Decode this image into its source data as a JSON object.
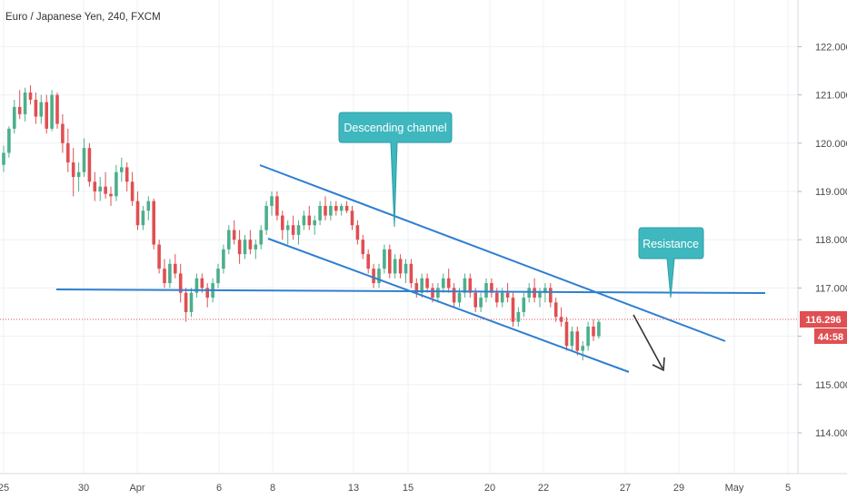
{
  "header": {
    "title": "Euro / Japanese Yen, 240, FXCM"
  },
  "colors": {
    "up": "#4caf8c",
    "down": "#e04f52",
    "trendline": "#2e7fd1",
    "callout": "#3fb7be",
    "grid": "#eef0f3",
    "price_line": "#e04f52",
    "price_badge": "#e04f52"
  },
  "price_badge": {
    "price": "116.296",
    "countdown": "44:58"
  },
  "chart_data": {
    "type": "candlestick",
    "title": "Euro / Japanese Yen, 240, FXCM",
    "x_tick_labels": [
      "25",
      "30",
      "Apr",
      "6",
      "8",
      "13",
      "15",
      "20",
      "22",
      "27",
      "29",
      "May",
      "5"
    ],
    "y_tick_labels": [
      "114.000",
      "115.000",
      "116.000",
      "117.000",
      "118.000",
      "119.000",
      "120.000",
      "121.000",
      "122.000"
    ],
    "ylim": [
      113.0,
      123.0
    ],
    "grid": true,
    "current_price": 116.296,
    "ohlc": [
      [
        119.55,
        119.95,
        119.4,
        119.8
      ],
      [
        119.8,
        120.35,
        119.7,
        120.3
      ],
      [
        120.3,
        120.9,
        120.2,
        120.75
      ],
      [
        120.75,
        121.1,
        120.5,
        120.6
      ],
      [
        120.6,
        121.15,
        120.45,
        121.05
      ],
      [
        121.05,
        121.2,
        120.8,
        120.9
      ],
      [
        120.9,
        121.05,
        120.4,
        120.55
      ],
      [
        120.55,
        121.0,
        120.4,
        120.85
      ],
      [
        120.85,
        121.0,
        120.2,
        120.3
      ],
      [
        120.3,
        121.1,
        120.25,
        121.0
      ],
      [
        121.0,
        121.05,
        120.3,
        120.4
      ],
      [
        120.4,
        120.6,
        119.8,
        120.0
      ],
      [
        120.0,
        120.3,
        119.4,
        119.6
      ],
      [
        119.6,
        119.9,
        118.9,
        119.3
      ],
      [
        119.3,
        119.6,
        119.0,
        119.4
      ],
      [
        119.4,
        120.1,
        119.3,
        119.9
      ],
      [
        119.9,
        120.0,
        119.1,
        119.2
      ],
      [
        119.2,
        119.4,
        118.8,
        119.0
      ],
      [
        119.0,
        119.3,
        118.8,
        119.1
      ],
      [
        119.1,
        119.4,
        118.85,
        118.95
      ],
      [
        118.95,
        119.1,
        118.7,
        118.9
      ],
      [
        118.9,
        119.55,
        118.8,
        119.4
      ],
      [
        119.4,
        119.7,
        119.2,
        119.5
      ],
      [
        119.5,
        119.6,
        119.0,
        119.2
      ],
      [
        119.2,
        119.4,
        118.7,
        118.8
      ],
      [
        118.8,
        119.0,
        118.2,
        118.3
      ],
      [
        118.3,
        118.7,
        118.2,
        118.6
      ],
      [
        118.6,
        118.9,
        118.4,
        118.8
      ],
      [
        118.8,
        118.85,
        117.8,
        117.9
      ],
      [
        117.9,
        118.0,
        117.3,
        117.4
      ],
      [
        117.4,
        117.6,
        117.0,
        117.1
      ],
      [
        117.1,
        117.6,
        117.0,
        117.5
      ],
      [
        117.5,
        117.7,
        117.2,
        117.3
      ],
      [
        117.3,
        117.5,
        116.7,
        116.9
      ],
      [
        116.9,
        117.0,
        116.3,
        116.5
      ],
      [
        116.5,
        117.0,
        116.4,
        116.9
      ],
      [
        116.9,
        117.3,
        116.8,
        117.2
      ],
      [
        117.2,
        117.3,
        116.9,
        117.0
      ],
      [
        117.0,
        117.1,
        116.6,
        116.8
      ],
      [
        116.8,
        117.2,
        116.7,
        117.1
      ],
      [
        117.1,
        117.5,
        117.0,
        117.4
      ],
      [
        117.4,
        117.9,
        117.3,
        117.8
      ],
      [
        117.8,
        118.3,
        117.7,
        118.2
      ],
      [
        118.2,
        118.4,
        117.9,
        118.0
      ],
      [
        118.0,
        118.2,
        117.5,
        117.7
      ],
      [
        117.7,
        118.1,
        117.6,
        118.0
      ],
      [
        118.0,
        118.2,
        117.7,
        117.8
      ],
      [
        117.8,
        118.0,
        117.6,
        117.9
      ],
      [
        117.9,
        118.3,
        117.8,
        118.2
      ],
      [
        118.2,
        118.8,
        118.1,
        118.7
      ],
      [
        118.7,
        119.0,
        118.5,
        118.9
      ],
      [
        118.9,
        119.0,
        118.4,
        118.5
      ],
      [
        118.5,
        118.6,
        118.0,
        118.2
      ],
      [
        118.2,
        118.4,
        117.9,
        118.3
      ],
      [
        118.3,
        118.5,
        118.0,
        118.1
      ],
      [
        118.1,
        118.4,
        117.9,
        118.3
      ],
      [
        118.3,
        118.6,
        118.2,
        118.5
      ],
      [
        118.5,
        118.7,
        118.2,
        118.3
      ],
      [
        118.3,
        118.5,
        118.1,
        118.4
      ],
      [
        118.4,
        118.8,
        118.3,
        118.7
      ],
      [
        118.7,
        118.9,
        118.4,
        118.5
      ],
      [
        118.5,
        118.8,
        118.4,
        118.7
      ],
      [
        118.7,
        118.8,
        118.5,
        118.6
      ],
      [
        118.6,
        118.75,
        118.5,
        118.7
      ],
      [
        118.7,
        118.8,
        118.55,
        118.6
      ],
      [
        118.6,
        118.7,
        118.2,
        118.3
      ],
      [
        118.3,
        118.4,
        117.9,
        118.0
      ],
      [
        118.0,
        118.1,
        117.6,
        117.7
      ],
      [
        117.7,
        117.8,
        117.3,
        117.4
      ],
      [
        117.4,
        117.5,
        117.0,
        117.1
      ],
      [
        117.1,
        117.5,
        117.0,
        117.4
      ],
      [
        117.4,
        117.9,
        117.3,
        117.8
      ],
      [
        117.8,
        117.9,
        117.2,
        117.3
      ],
      [
        117.3,
        117.7,
        117.2,
        117.6
      ],
      [
        117.6,
        117.7,
        117.2,
        117.3
      ],
      [
        117.3,
        117.6,
        117.1,
        117.5
      ],
      [
        117.5,
        117.6,
        117.0,
        117.1
      ],
      [
        117.1,
        117.2,
        116.8,
        116.9
      ],
      [
        116.9,
        117.3,
        116.8,
        117.2
      ],
      [
        117.2,
        117.3,
        116.9,
        117.0
      ],
      [
        117.0,
        117.1,
        116.7,
        116.8
      ],
      [
        116.8,
        117.1,
        116.7,
        117.0
      ],
      [
        117.0,
        117.3,
        116.9,
        117.2
      ],
      [
        117.2,
        117.4,
        116.9,
        117.0
      ],
      [
        117.0,
        117.1,
        116.6,
        116.7
      ],
      [
        116.7,
        117.0,
        116.6,
        116.9
      ],
      [
        116.9,
        117.3,
        116.8,
        117.2
      ],
      [
        117.2,
        117.3,
        116.8,
        116.9
      ],
      [
        116.9,
        117.0,
        116.5,
        116.6
      ],
      [
        116.6,
        116.9,
        116.5,
        116.8
      ],
      [
        116.8,
        117.2,
        116.7,
        117.1
      ],
      [
        117.1,
        117.2,
        116.8,
        116.9
      ],
      [
        116.9,
        117.0,
        116.6,
        116.7
      ],
      [
        116.7,
        117.0,
        116.6,
        116.9
      ],
      [
        116.9,
        117.1,
        116.7,
        116.8
      ],
      [
        116.8,
        116.9,
        116.2,
        116.3
      ],
      [
        116.3,
        116.6,
        116.2,
        116.5
      ],
      [
        116.5,
        116.9,
        116.4,
        116.8
      ],
      [
        116.8,
        117.1,
        116.7,
        117.0
      ],
      [
        117.0,
        117.2,
        116.7,
        116.8
      ],
      [
        116.8,
        117.0,
        116.6,
        116.9
      ],
      [
        116.9,
        117.1,
        116.7,
        117.0
      ],
      [
        117.0,
        117.1,
        116.6,
        116.7
      ],
      [
        116.7,
        116.8,
        116.3,
        116.4
      ],
      [
        116.4,
        116.6,
        116.2,
        116.3
      ],
      [
        116.3,
        116.4,
        115.7,
        115.8
      ],
      [
        115.8,
        116.2,
        115.7,
        116.1
      ],
      [
        116.1,
        116.2,
        115.6,
        115.7
      ],
      [
        115.7,
        115.9,
        115.5,
        115.8
      ],
      [
        115.8,
        116.3,
        115.7,
        116.2
      ],
      [
        116.2,
        116.35,
        115.9,
        116.0
      ],
      [
        116.0,
        116.35,
        115.95,
        116.296
      ]
    ]
  },
  "annotations": {
    "callouts": [
      {
        "text": "Descending channel"
      },
      {
        "text": "Resistance"
      }
    ]
  }
}
